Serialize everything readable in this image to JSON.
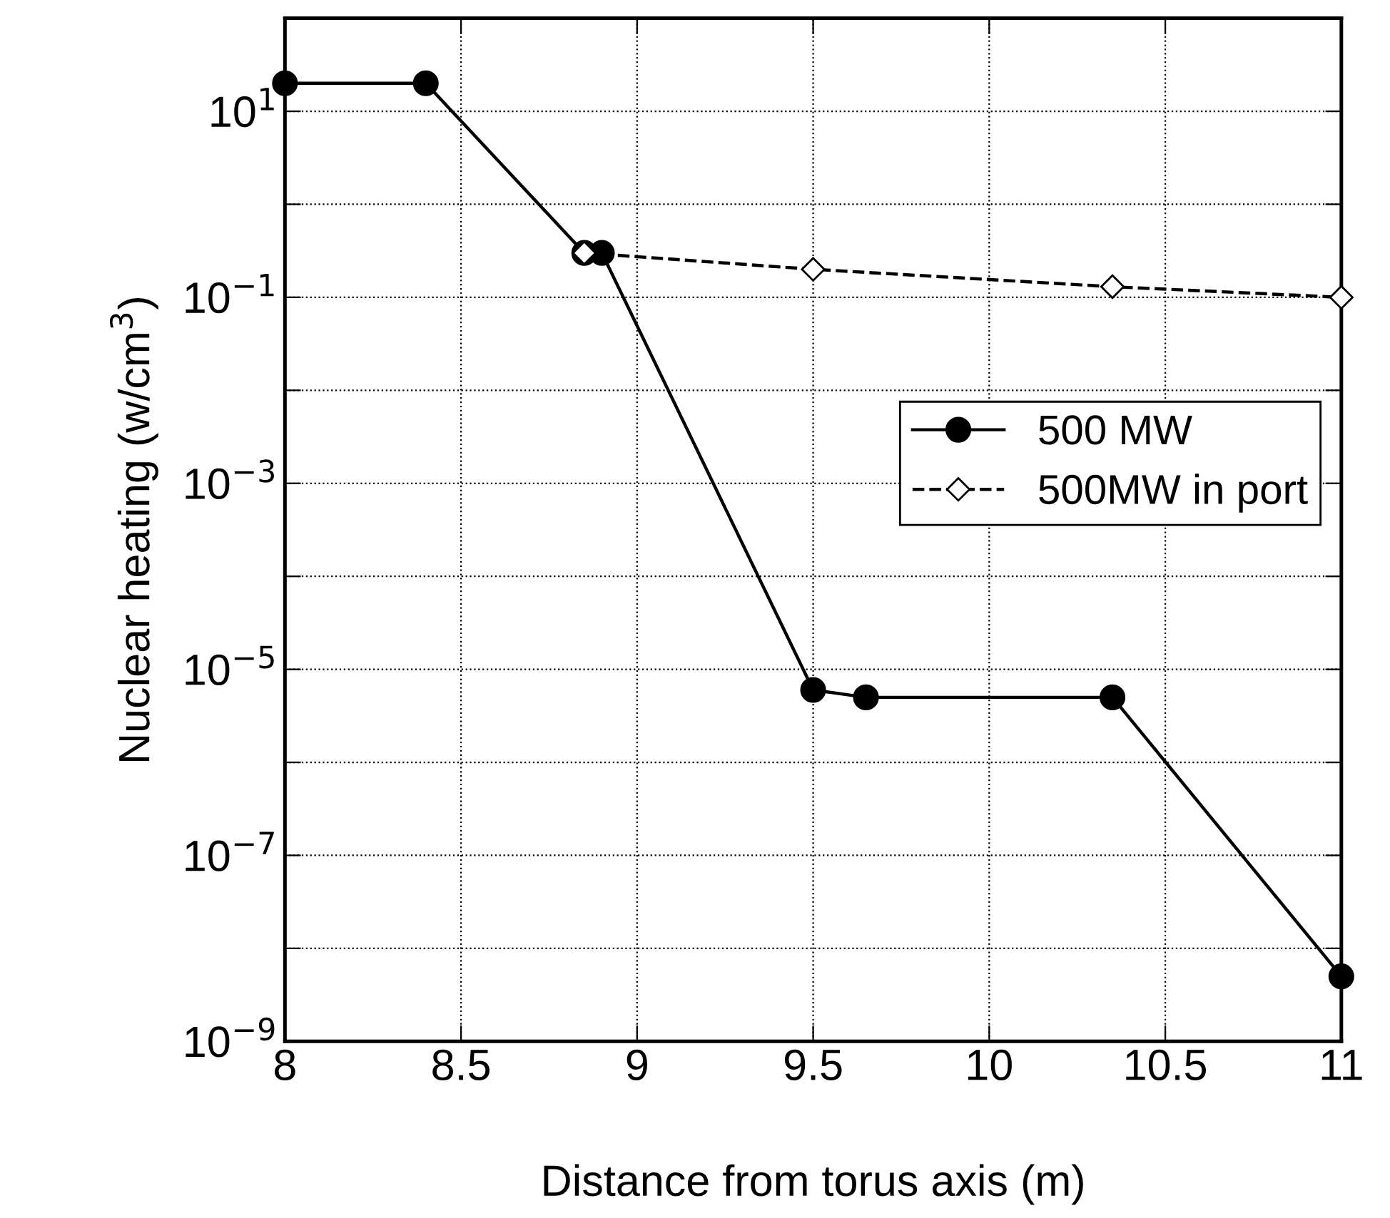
{
  "chart_data": {
    "type": "line",
    "xlabel": "Distance from torus axis (m)",
    "ylabel": "Nuclear heating (w/cm$^{3}$)",
    "log": "y",
    "grid": true,
    "legend": "right",
    "xlim": [
      8,
      11
    ],
    "xticks": [
      8,
      8.5,
      9,
      9.5,
      10,
      10.5,
      11
    ],
    "ylim": [
      1e-09,
      100
    ],
    "yticks": [
      {
        "value": 1e-09,
        "label": "10$^{−9}$"
      },
      {
        "value": 1e-08,
        "label": null
      },
      {
        "value": 1e-07,
        "label": "10$^{−7}$"
      },
      {
        "value": 1e-06,
        "label": null
      },
      {
        "value": 1e-05,
        "label": "10$^{−5}$"
      },
      {
        "value": 0.0001,
        "label": null
      },
      {
        "value": 0.001,
        "label": "10$^{−3}$"
      },
      {
        "value": 0.01,
        "label": null
      },
      {
        "value": 0.1,
        "label": "10$^{−1}$"
      },
      {
        "value": 1,
        "label": null
      },
      {
        "value": 10,
        "label": "10$^{1}$"
      },
      {
        "value": 100,
        "label": null
      }
    ],
    "series": [
      {
        "name": "500 MW",
        "color": "#000000",
        "marker": "circle",
        "line_style": "solid",
        "x": [
          8,
          8.4,
          8.85,
          8.9,
          9.5,
          9.65,
          10.35,
          11
        ],
        "values": [
          20,
          20,
          0.3,
          0.3,
          6e-06,
          5e-06,
          5e-06,
          5e-09
        ]
      },
      {
        "name": "500MW in port",
        "color": "#000000",
        "marker": "diamond",
        "line_style": "dashed",
        "x": [
          8.85,
          9.5,
          10.35,
          11
        ],
        "values": [
          0.3,
          0.2,
          0.13,
          0.1
        ]
      }
    ]
  }
}
